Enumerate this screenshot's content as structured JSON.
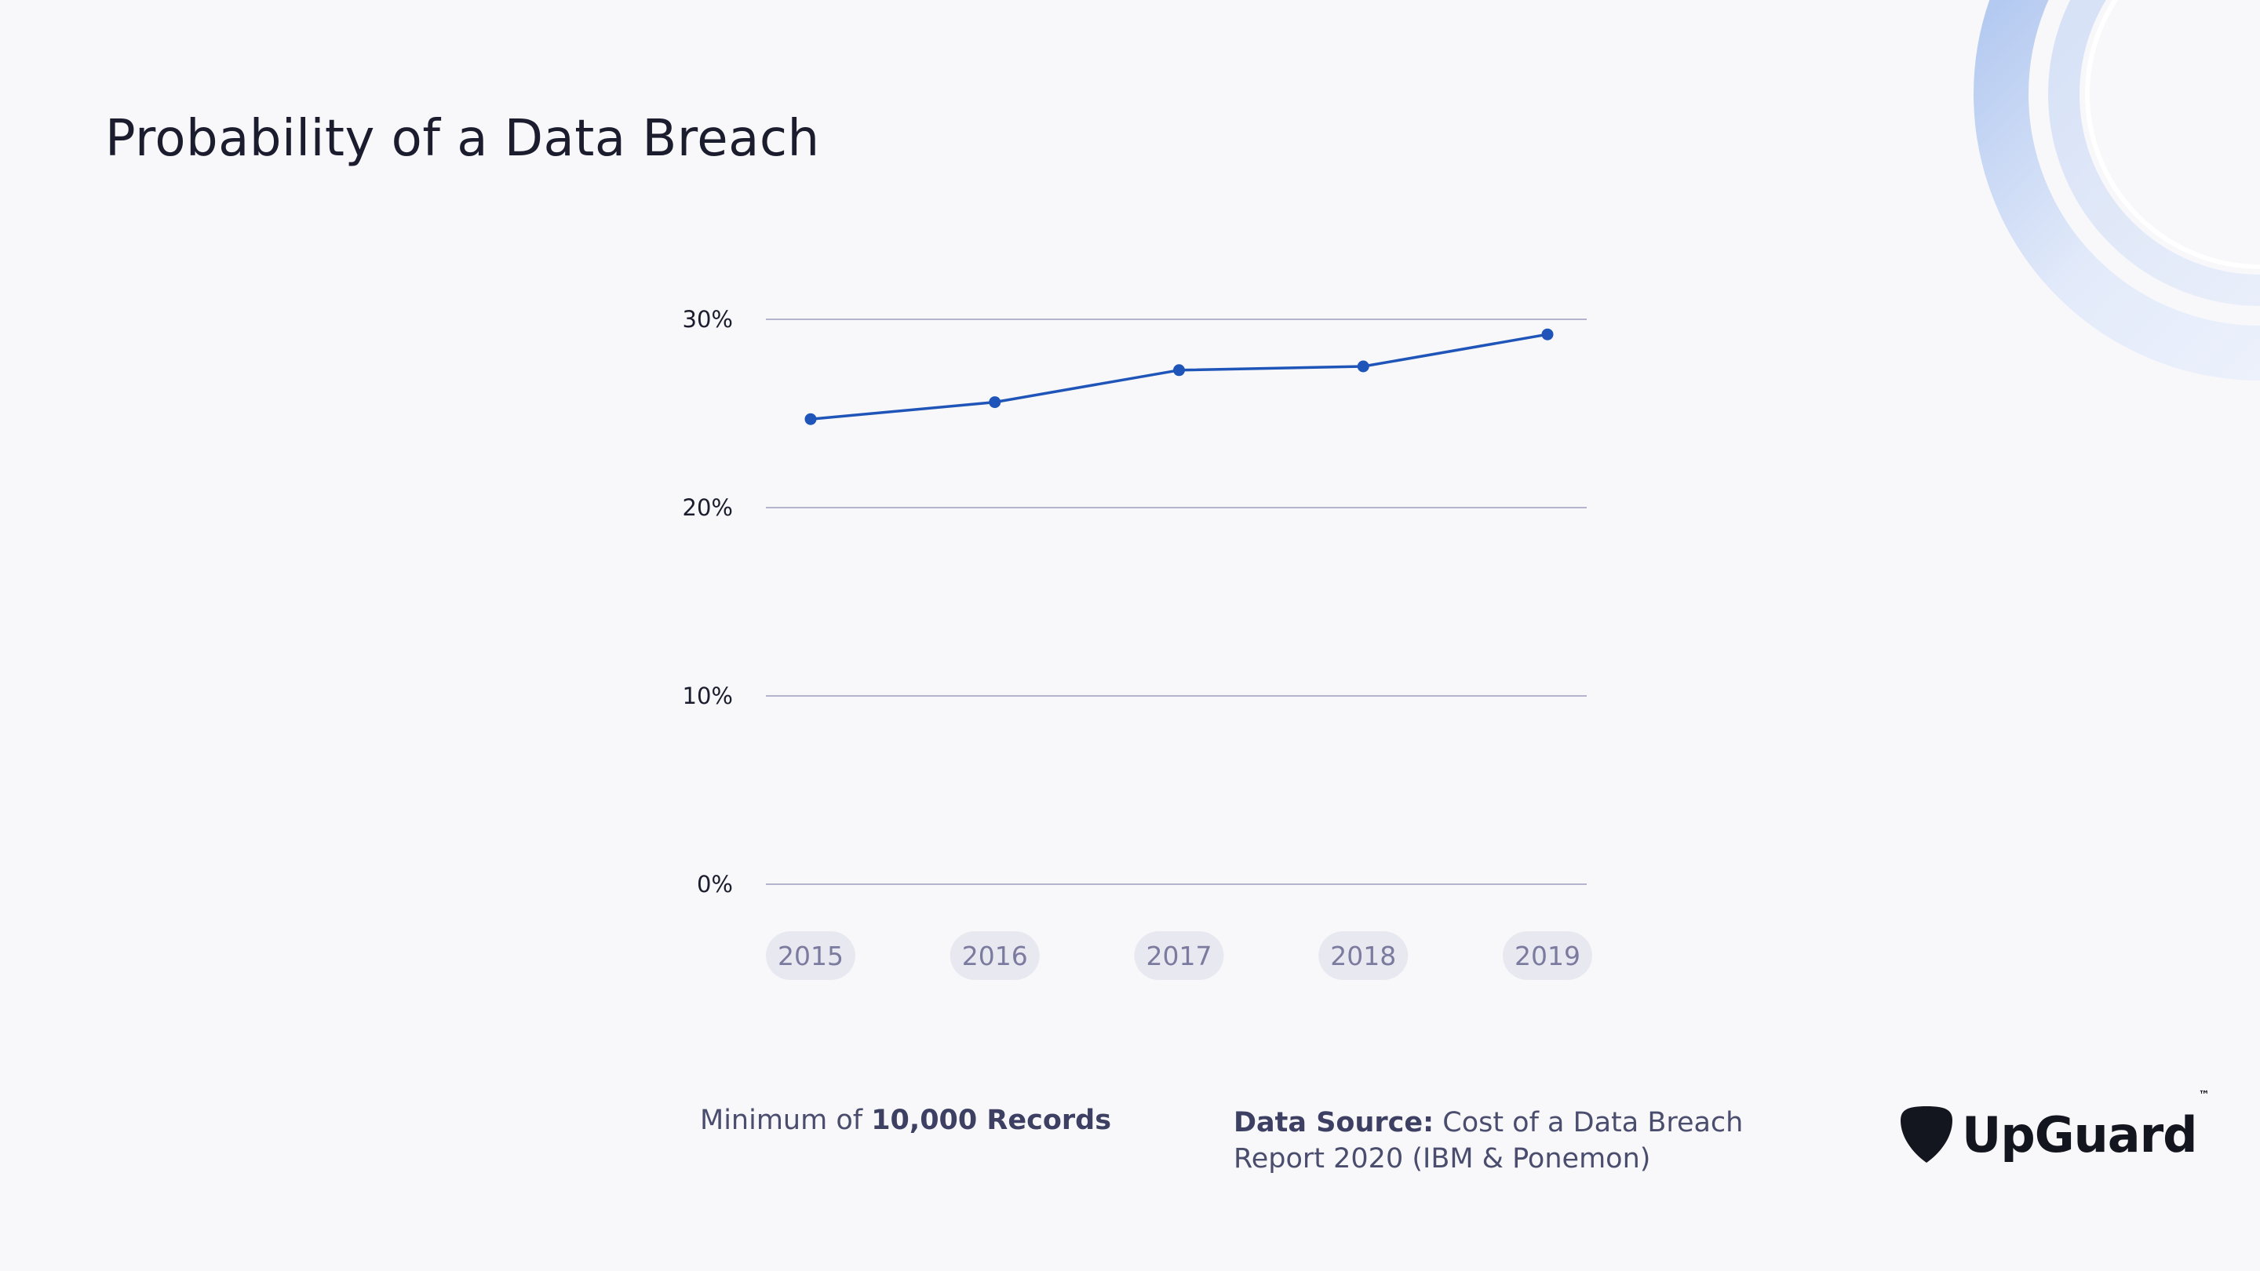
{
  "title": "Probability of a Data Breach",
  "colors": {
    "line": "#1f55b8",
    "grid": "#b4b4cc",
    "pill": "#e8e8f0",
    "tick_text": "#7a7b9e",
    "background": "#f8f8fa"
  },
  "chart_data": {
    "type": "line",
    "categories": [
      "2015",
      "2016",
      "2017",
      "2018",
      "2019"
    ],
    "series": [
      {
        "values": [
          24.7,
          25.6,
          27.3,
          27.5,
          29.2
        ]
      }
    ],
    "y_ticks": [
      "0%",
      "10%",
      "20%",
      "30%"
    ],
    "ylim": [
      0,
      30
    ],
    "grid": true,
    "xlabel": "",
    "ylabel": ""
  },
  "footnote_left": {
    "prefix": "Minimum of ",
    "bold": "10,000 Records"
  },
  "footnote_right": {
    "bold": "Data Source:",
    "text": " Cost of a Data Breach Report 2020 (IBM & Ponemon)"
  },
  "logo": {
    "name": "UpGuard",
    "tm": "™",
    "icon": "shield-pick-icon"
  }
}
